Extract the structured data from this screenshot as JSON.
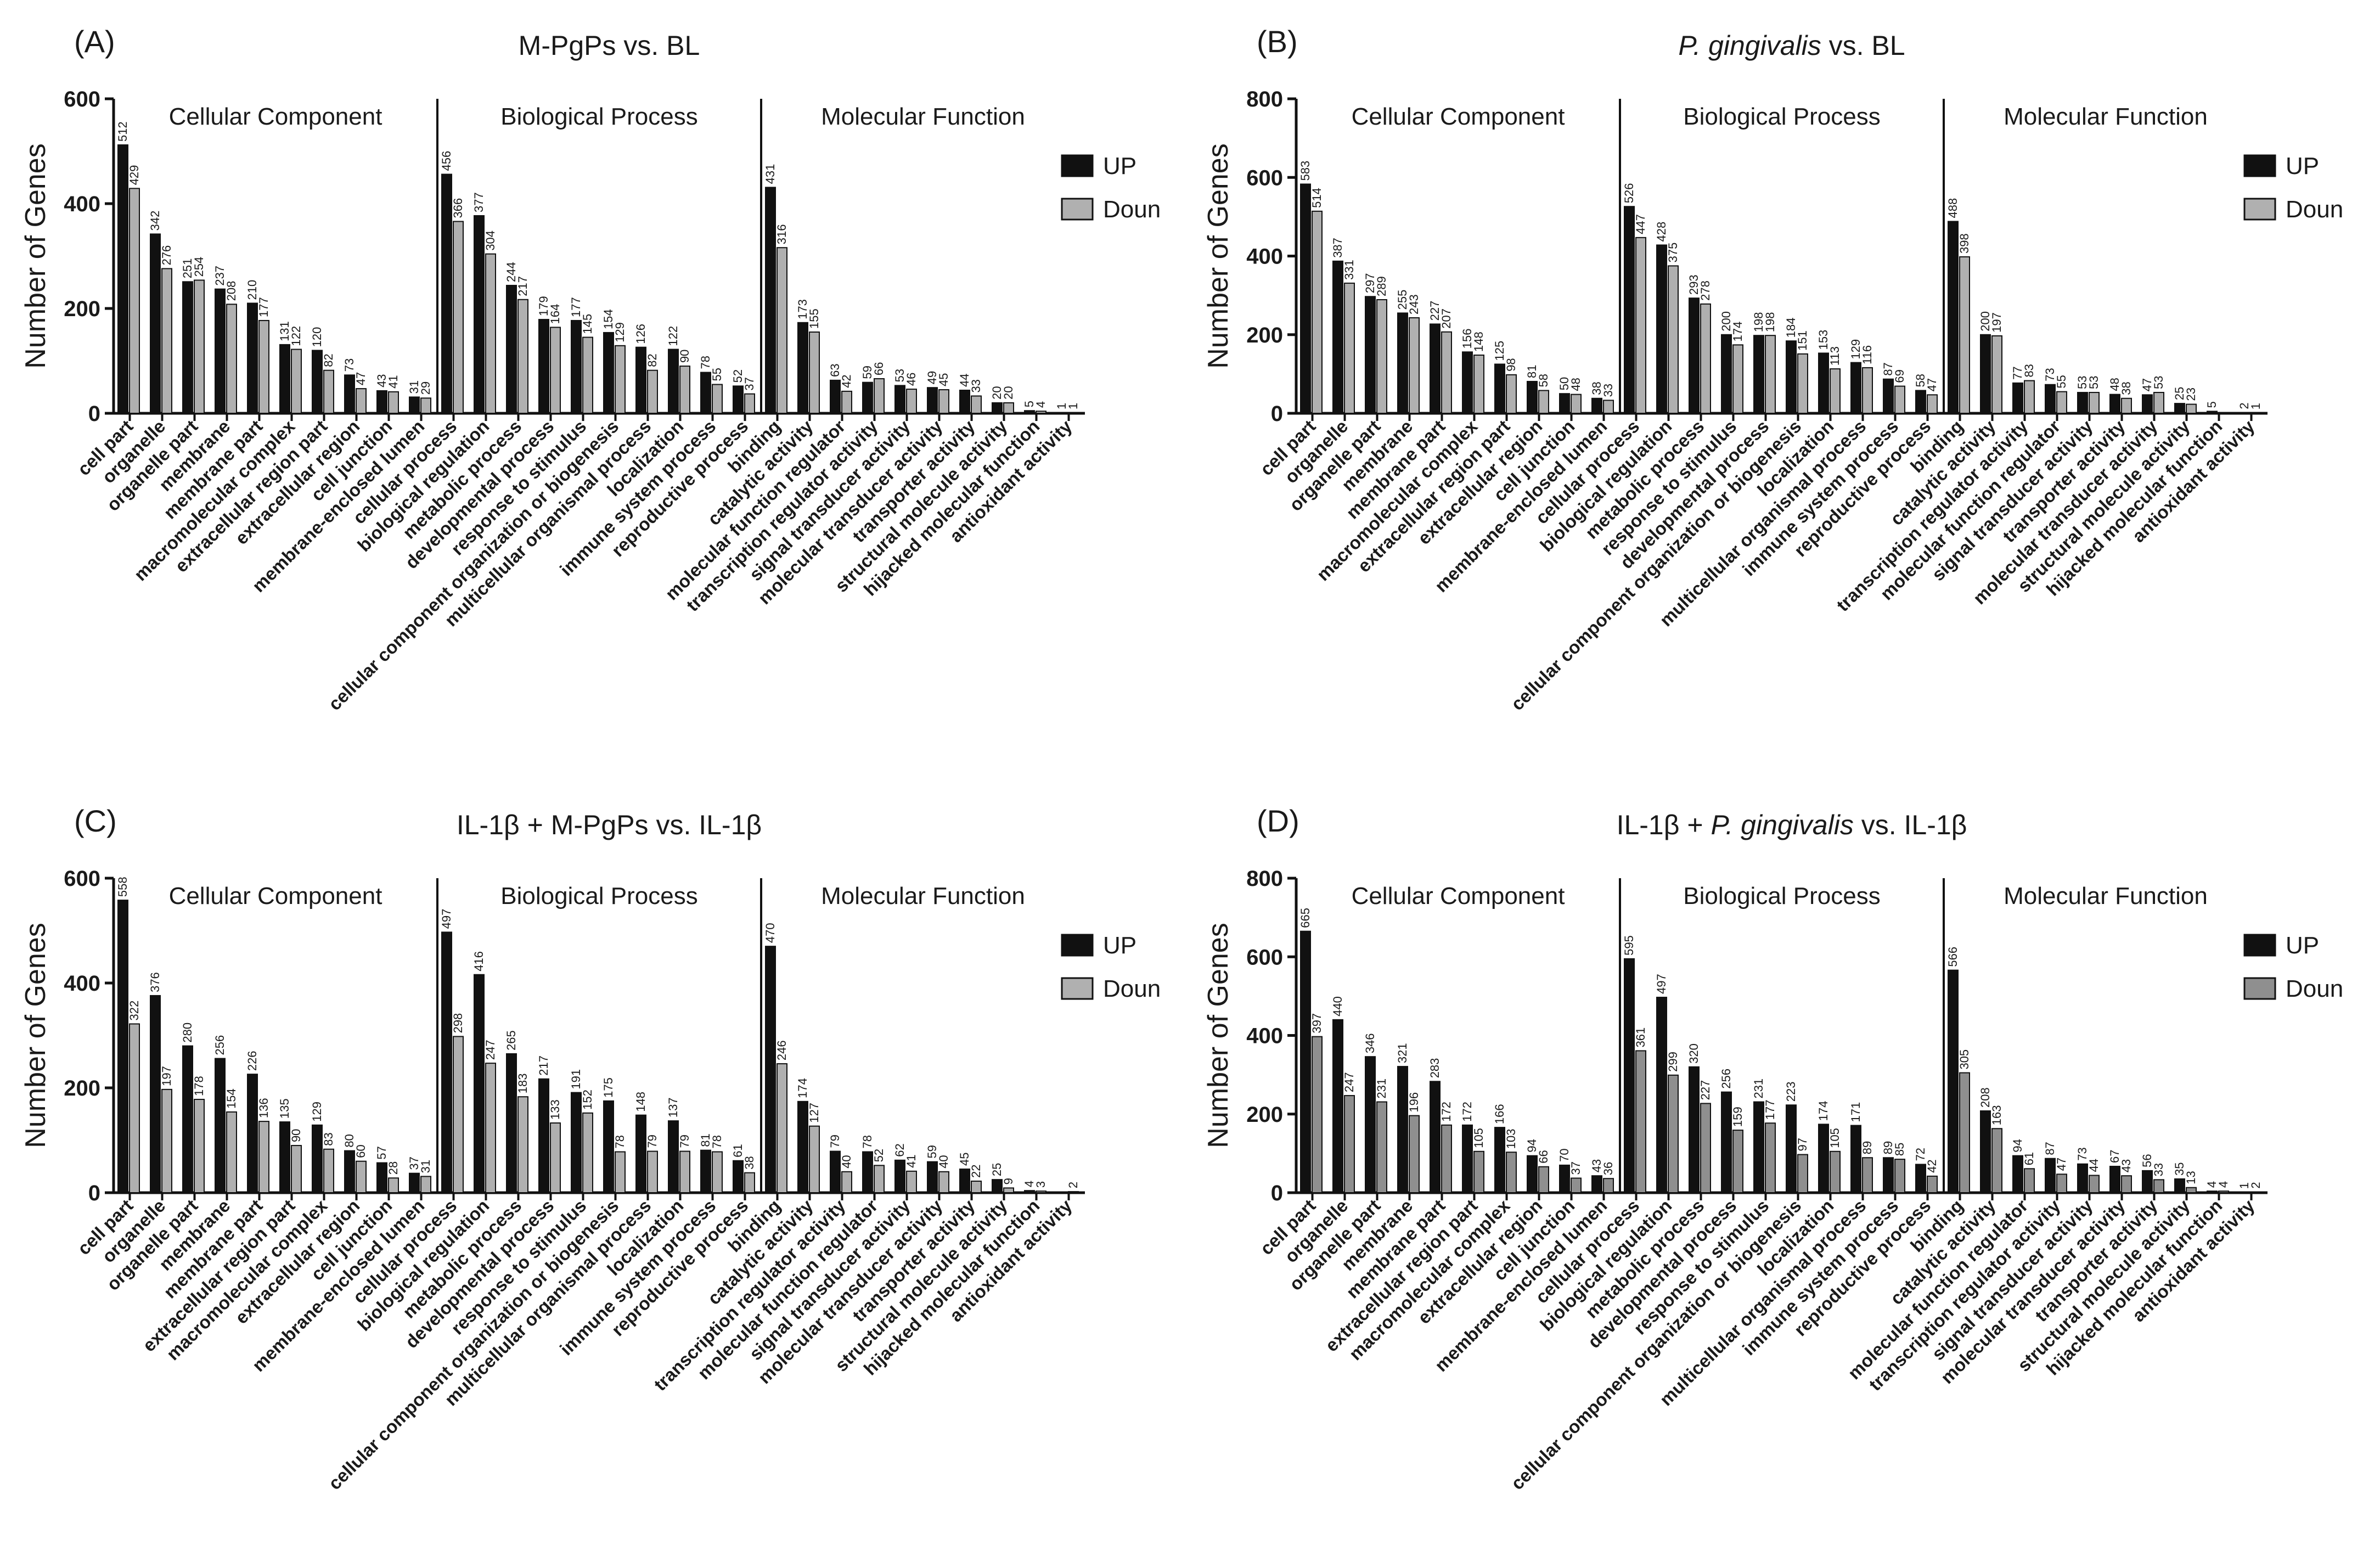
{
  "colors": {
    "up": "#111111",
    "down_light": "#b0b0b0",
    "down_dark": "#8f8f8f",
    "axis": "#111111"
  },
  "legend": {
    "up": "UP",
    "down": "Doun"
  },
  "ylabel": "Number of Genes",
  "groups": [
    "Cellular Component",
    "Biological Process",
    "Molecular Function"
  ],
  "chart_data": [
    {
      "type": "bar",
      "panel": "(A)",
      "title": "M-PgPs vs. BL",
      "title_parts": [
        {
          "text": "M-PgPs vs. BL",
          "italic": false
        }
      ],
      "ylim": [
        0,
        600
      ],
      "yticks": [
        "0",
        "200",
        "400",
        "600"
      ],
      "categories": [
        "cell part",
        "organelle",
        "organelle part",
        "membrane",
        "membrane part",
        "macromolecular complex",
        "extracellular region part",
        "extracellular region",
        "cell junction",
        "membrane-enclosed lumen",
        "cellular process",
        "biological regulation",
        "metabolic process",
        "developmental process",
        "response to stimulus",
        "cellular component organization or biogenesis",
        "multicellular organismal process",
        "localization",
        "immune system process",
        "reproductive process",
        "binding",
        "catalytic activity",
        "molecular function regulator",
        "transcription regulator activity",
        "signal transducer activity",
        "molecular transducer activity",
        "transporter activity",
        "structural molecule activity",
        "hijacked molecular function",
        "antioxidant activity"
      ],
      "group_sizes": [
        10,
        10,
        10
      ],
      "series": [
        {
          "name": "UP",
          "values": [
            512,
            342,
            251,
            237,
            210,
            131,
            120,
            73,
            43,
            31,
            456,
            377,
            244,
            179,
            177,
            154,
            126,
            122,
            78,
            52,
            431,
            173,
            63,
            59,
            53,
            49,
            44,
            20,
            5,
            1
          ],
          "labels": [
            "512",
            "342",
            "251",
            "237",
            "210",
            "131",
            "120",
            "73",
            "43",
            "31",
            "456",
            "377",
            "244",
            "179",
            "177",
            "154",
            "126",
            "122",
            "78",
            "52",
            "431",
            "173",
            "63",
            "59",
            "53",
            "49",
            "44",
            "20",
            "5",
            "1"
          ]
        },
        {
          "name": "Doun",
          "values": [
            429,
            276,
            254,
            208,
            177,
            122,
            82,
            47,
            41,
            29,
            366,
            304,
            217,
            164,
            145,
            129,
            82,
            90,
            55,
            37,
            316,
            155,
            42,
            66,
            46,
            45,
            33,
            20,
            4,
            1
          ],
          "labels": [
            "429",
            "276",
            "254",
            "208",
            "177",
            "122",
            "82",
            "47",
            "41",
            "29",
            "366",
            "304",
            "217",
            "164",
            "145",
            "129",
            "82",
            "90",
            "55",
            "37",
            "316",
            "155",
            "42",
            "66",
            "46",
            "45",
            "33",
            "20",
            "4",
            "1"
          ]
        }
      ]
    },
    {
      "type": "bar",
      "panel": "(B)",
      "title": "P. gingivalis vs. BL",
      "title_parts": [
        {
          "text": "P. gingivalis",
          "italic": true
        },
        {
          "text": " vs. BL",
          "italic": false
        }
      ],
      "ylim": [
        0,
        800
      ],
      "yticks": [
        "0",
        "200",
        "400",
        "600",
        "800"
      ],
      "categories": [
        "cell part",
        "organelle",
        "organelle part",
        "membrane",
        "membrane part",
        "macromolecular complex",
        "extracellular region part",
        "extracellular region",
        "cell junction",
        "membrane-enclosed lumen",
        "cellular process",
        "biological regulation",
        "metabolic process",
        "response to stimulus",
        "developmental process",
        "cellular component organization or biogenesis",
        "localization",
        "multicellular organismal process",
        "immune system process",
        "reproductive process",
        "binding",
        "catalytic activity",
        "transcription regulator activity",
        "molecular function regulator",
        "signal transducer activity",
        "transporter activity",
        "molecular transducer activity",
        "structural molecule activity",
        "hijacked molecular function",
        "antioxidant activity"
      ],
      "group_sizes": [
        10,
        10,
        10
      ],
      "series": [
        {
          "name": "UP",
          "values": [
            583,
            387,
            297,
            255,
            227,
            156,
            125,
            81,
            50,
            38,
            526,
            428,
            293,
            200,
            198,
            184,
            153,
            129,
            87,
            58,
            488,
            200,
            77,
            73,
            53,
            48,
            47,
            25,
            5,
            2
          ],
          "labels": [
            "583",
            "387",
            "297",
            "255",
            "227",
            "156",
            "125",
            "81",
            "50",
            "38",
            "526",
            "428",
            "293",
            "200",
            "198",
            "184",
            "153",
            "129",
            "87",
            "58",
            "488",
            "200",
            "77",
            "73",
            "53",
            "48",
            "47",
            "25",
            "5",
            "2"
          ]
        },
        {
          "name": "Doun",
          "values": [
            514,
            331,
            289,
            243,
            207,
            148,
            98,
            58,
            48,
            33,
            447,
            375,
            278,
            174,
            198,
            151,
            113,
            116,
            69,
            47,
            398,
            197,
            83,
            55,
            53,
            38,
            53,
            23,
            0,
            1
          ],
          "labels": [
            "514",
            "331",
            "289",
            "243",
            "207",
            "148",
            "98",
            "58",
            "48",
            "33",
            "447",
            "375",
            "278",
            "174",
            "198",
            "151",
            "113",
            "116",
            "69",
            "47",
            "398",
            "197",
            "83",
            "55",
            "53",
            "38",
            "53",
            "23",
            "",
            "1"
          ]
        }
      ]
    },
    {
      "type": "bar",
      "panel": "(C)",
      "title": "IL-1β + M-PgPs vs. IL-1β",
      "title_parts": [
        {
          "text": "IL-1β + M-PgPs vs. IL-1β",
          "italic": false
        }
      ],
      "ylim": [
        0,
        600
      ],
      "yticks": [
        "0",
        "200",
        "400",
        "600"
      ],
      "categories": [
        "cell part",
        "organelle",
        "organelle part",
        "membrane",
        "membrane part",
        "extracellular region part",
        "macromolecular complex",
        "extracellular region",
        "cell junction",
        "membrane-enclosed lumen",
        "cellular process",
        "biological regulation",
        "metabolic process",
        "developmental process",
        "response to stimulus",
        "cellular component organization or biogenesis",
        "multicellular organismal process",
        "localization",
        "immune system process",
        "reproductive process",
        "binding",
        "catalytic activity",
        "transcription regulator activity",
        "molecular function regulator",
        "signal transducer activity",
        "molecular transducer activity",
        "transporter activity",
        "structural molecule activity",
        "hijacked molecular function",
        "antioxidant activity"
      ],
      "group_sizes": [
        10,
        10,
        10
      ],
      "series": [
        {
          "name": "UP",
          "values": [
            558,
            376,
            280,
            256,
            226,
            135,
            129,
            80,
            57,
            37,
            497,
            416,
            265,
            217,
            191,
            175,
            148,
            137,
            81,
            61,
            470,
            174,
            79,
            78,
            62,
            59,
            45,
            25,
            4,
            0
          ],
          "labels": [
            "558",
            "376",
            "280",
            "256",
            "226",
            "135",
            "129",
            "80",
            "57",
            "37",
            "497",
            "416",
            "265",
            "217",
            "191",
            "175",
            "148",
            "137",
            "81",
            "61",
            "470",
            "174",
            "79",
            "78",
            "62",
            "59",
            "45",
            "25",
            "4",
            ""
          ]
        },
        {
          "name": "Doun",
          "values": [
            322,
            197,
            178,
            154,
            136,
            90,
            83,
            60,
            28,
            31,
            298,
            247,
            183,
            133,
            152,
            78,
            79,
            79,
            78,
            38,
            246,
            127,
            40,
            52,
            41,
            40,
            22,
            9,
            3,
            2
          ],
          "labels": [
            "322",
            "197",
            "178",
            "154",
            "136",
            "90",
            "83",
            "60",
            "28",
            "31",
            "298",
            "247",
            "183",
            "133",
            "152",
            "78",
            "79",
            "79",
            "78",
            "38",
            "246",
            "127",
            "40",
            "52",
            "41",
            "40",
            "22",
            "9",
            "3",
            "2"
          ]
        }
      ]
    },
    {
      "type": "bar",
      "panel": "(D)",
      "title": "IL-1β + P. gingivalis vs. IL-1β",
      "title_parts": [
        {
          "text": "IL-1β + ",
          "italic": false
        },
        {
          "text": "P. gingivalis",
          "italic": true
        },
        {
          "text": " vs. IL-1β",
          "italic": false
        }
      ],
      "ylim": [
        0,
        800
      ],
      "yticks": [
        "0",
        "200",
        "400",
        "600",
        "800"
      ],
      "categories": [
        "cell part",
        "organelle",
        "organelle part",
        "membrane",
        "membrane part",
        "extracellular region part",
        "macromolecular complex",
        "extracellular region",
        "cell junction",
        "membrane-enclosed lumen",
        "cellular process",
        "biological regulation",
        "metabolic process",
        "developmental process",
        "response to stimulus",
        "cellular component organization or biogenesis",
        "localization",
        "multicellular organismal process",
        "immune system process",
        "reproductive process",
        "binding",
        "catalytic activity",
        "molecular function regulator",
        "transcription regulator activity",
        "signal transducer activity",
        "molecular transducer activity",
        "transporter activity",
        "structural molecule activity",
        "hijacked molecular function",
        "antioxidant activity"
      ],
      "group_sizes": [
        10,
        10,
        10
      ],
      "series": [
        {
          "name": "UP",
          "values": [
            665,
            440,
            346,
            321,
            283,
            172,
            166,
            94,
            70,
            43,
            595,
            497,
            320,
            256,
            231,
            223,
            174,
            171,
            89,
            72,
            566,
            208,
            94,
            87,
            73,
            67,
            56,
            35,
            4,
            1
          ],
          "labels": [
            "665",
            "440",
            "346",
            "321",
            "283",
            "172",
            "166",
            "94",
            "70",
            "43",
            "595",
            "497",
            "320",
            "256",
            "231",
            "223",
            "174",
            "171",
            "89",
            "72",
            "566",
            "208",
            "94",
            "87",
            "73",
            "67",
            "56",
            "35",
            "4",
            "1"
          ]
        },
        {
          "name": "Doun",
          "values": [
            397,
            247,
            231,
            196,
            172,
            105,
            103,
            66,
            37,
            36,
            361,
            299,
            227,
            159,
            177,
            97,
            105,
            89,
            85,
            42,
            305,
            163,
            61,
            47,
            44,
            43,
            33,
            13,
            4,
            2
          ],
          "labels": [
            "397",
            "247",
            "231",
            "196",
            "172",
            "105",
            "103",
            "66",
            "37",
            "36",
            "361",
            "299",
            "227",
            "159",
            "177",
            "97",
            "105",
            "89",
            "85",
            "42",
            "305",
            "163",
            "61",
            "47",
            "44",
            "43",
            "33",
            "13",
            "4",
            "2"
          ]
        }
      ]
    }
  ]
}
